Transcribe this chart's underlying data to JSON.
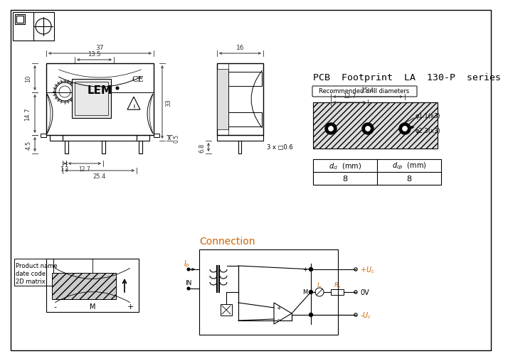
{
  "bg_color": "#ffffff",
  "line_color": "#000000",
  "dim_color": "#000000",
  "orange_color": "#cc6600",
  "title_pcb": "PCB  Footprint  LA  130-P  series",
  "conn_title": "Connection",
  "drill_label": "Recommended drill diameters",
  "d1_label": "φ1.1(x3)",
  "d2_label": "φ2.3(x3)",
  "pin_sq_label": "3 x □0.6",
  "tbl_h1": "$d_{ci}$  (mm)",
  "tbl_h2": "$d_{cp}$  (mm)",
  "tbl_v1": "8",
  "tbl_v2": "8",
  "lbl_text": "Product name\ndate code\n2D matrix"
}
